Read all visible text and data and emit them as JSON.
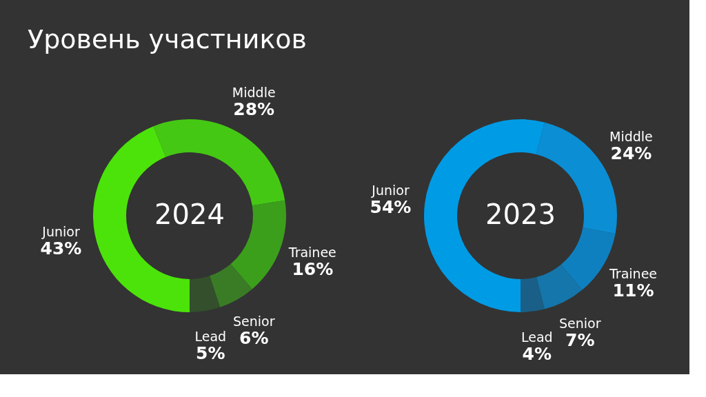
{
  "chart_data": [
    {
      "type": "donut",
      "title": "Уровень участников",
      "annotations": [
        "2024"
      ],
      "categories": [
        "Middle",
        "Trainee",
        "Senior",
        "Lead",
        "Junior"
      ],
      "values": [
        28,
        16,
        6,
        5,
        43
      ],
      "value_labels": [
        "28%",
        "16%",
        "6%",
        "5%",
        "43%"
      ],
      "colors": [
        "#45c814",
        "#3c9f1c",
        "#3a7c26",
        "#334f2c",
        "#4ce30a"
      ],
      "legend": false
    },
    {
      "type": "donut",
      "annotations": [
        "2023"
      ],
      "categories": [
        "Middle",
        "Trainee",
        "Senior",
        "Lead",
        "Junior"
      ],
      "values": [
        24,
        11,
        7,
        4,
        54
      ],
      "value_labels": [
        "24%",
        "11%",
        "7%",
        "4%",
        "54%"
      ],
      "colors": [
        "#0b8ed4",
        "#0f80bf",
        "#1476ab",
        "#1a5f87",
        "#009be5"
      ],
      "legend": false
    }
  ]
}
